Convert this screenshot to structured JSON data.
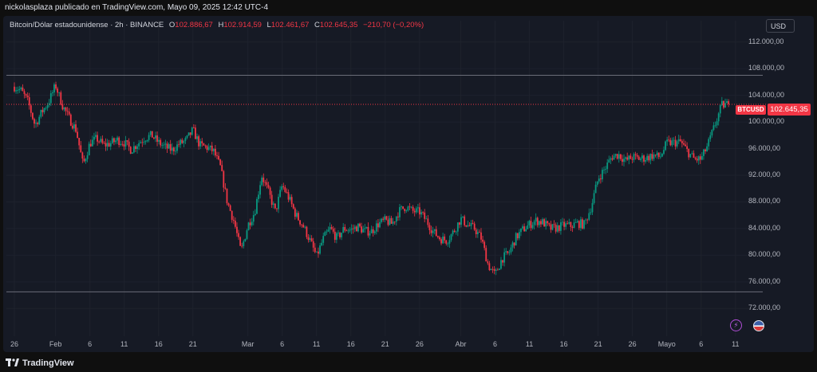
{
  "header": {
    "published_line": "nickolasplaza publicado en TradingView.com, Mayo 09, 2025 12:42 UTC-4"
  },
  "legend": {
    "symbol": "Bitcoin/Dólar estadounidense · 2h · BINANCE",
    "o_key": "O",
    "o_val": "102.886,67",
    "h_key": "H",
    "h_val": "102.914,59",
    "l_key": "L",
    "l_val": "102.461,67",
    "c_key": "C",
    "c_val": "102.645,35",
    "change": "−210,70 (−0,20%)"
  },
  "currency_button": "USD",
  "price_tag": {
    "symbol": "BTCUSD",
    "price": "102.645,35"
  },
  "footer": {
    "brand": "TradingView"
  },
  "colors": {
    "up": "#089981",
    "down": "#f23645",
    "background": "#161a25",
    "grid": "#1e222d"
  },
  "chart_data": {
    "type": "candlestick",
    "title": "Bitcoin/Dólar estadounidense · 2h · BINANCE",
    "ylim": [
      70000,
      114000
    ],
    "y_ticks": [
      112000,
      108000,
      104000,
      100000,
      96000,
      92000,
      88000,
      84000,
      80000,
      76000,
      72000
    ],
    "y_tick_labels": [
      "112.000,00",
      "108.000,00",
      "104.000,00",
      "100.000,00",
      "96.000,00",
      "92.000,00",
      "88.000,00",
      "84.000,00",
      "80.000,00",
      "76.000,00",
      "72.000,00"
    ],
    "x_range_days": [
      0,
      107
    ],
    "x_ticks": [
      {
        "day": 0,
        "label": "26"
      },
      {
        "day": 6,
        "label": "Feb"
      },
      {
        "day": 11,
        "label": "6"
      },
      {
        "day": 16,
        "label": "11"
      },
      {
        "day": 21,
        "label": "16"
      },
      {
        "day": 26,
        "label": "21"
      },
      {
        "day": 34,
        "label": "Mar"
      },
      {
        "day": 39,
        "label": "6"
      },
      {
        "day": 44,
        "label": "11"
      },
      {
        "day": 49,
        "label": "16"
      },
      {
        "day": 54,
        "label": "21"
      },
      {
        "day": 59,
        "label": "26"
      },
      {
        "day": 65,
        "label": "Abr"
      },
      {
        "day": 70,
        "label": "6"
      },
      {
        "day": 75,
        "label": "11"
      },
      {
        "day": 80,
        "label": "16"
      },
      {
        "day": 85,
        "label": "21"
      },
      {
        "day": 90,
        "label": "26"
      },
      {
        "day": 95,
        "label": "Mayo"
      },
      {
        "day": 100,
        "label": "6"
      },
      {
        "day": 105,
        "label": "11"
      }
    ],
    "horizontal_lines": [
      107000,
      74500
    ],
    "last_price": 102645.35,
    "close_path": [
      [
        0,
        105300
      ],
      [
        1,
        104700
      ],
      [
        2,
        103000
      ],
      [
        3,
        99500
      ],
      [
        4,
        101500
      ],
      [
        5,
        103000
      ],
      [
        6,
        105500
      ],
      [
        7,
        102500
      ],
      [
        8,
        100500
      ],
      [
        9,
        98800
      ],
      [
        10,
        93500
      ],
      [
        11,
        96800
      ],
      [
        12,
        97500
      ],
      [
        13,
        96500
      ],
      [
        14,
        96800
      ],
      [
        15,
        97300
      ],
      [
        16,
        96900
      ],
      [
        17,
        95800
      ],
      [
        18,
        96800
      ],
      [
        19,
        97600
      ],
      [
        20,
        98000
      ],
      [
        21,
        96900
      ],
      [
        22,
        96200
      ],
      [
        23,
        95800
      ],
      [
        24,
        96700
      ],
      [
        25,
        97200
      ],
      [
        26,
        98800
      ],
      [
        27,
        96500
      ],
      [
        28,
        96200
      ],
      [
        29,
        95600
      ],
      [
        30,
        93200
      ],
      [
        31,
        88000
      ],
      [
        32,
        85000
      ],
      [
        33,
        80500
      ],
      [
        34,
        84500
      ],
      [
        35,
        86500
      ],
      [
        36,
        92000
      ],
      [
        37,
        89500
      ],
      [
        38,
        86500
      ],
      [
        39,
        90500
      ],
      [
        40,
        88500
      ],
      [
        41,
        86000
      ],
      [
        42,
        84500
      ],
      [
        43,
        82300
      ],
      [
        44,
        79800
      ],
      [
        45,
        82500
      ],
      [
        46,
        84000
      ],
      [
        47,
        82500
      ],
      [
        48,
        84000
      ],
      [
        49,
        83800
      ],
      [
        50,
        84300
      ],
      [
        51,
        83600
      ],
      [
        52,
        83600
      ],
      [
        53,
        84700
      ],
      [
        54,
        85200
      ],
      [
        55,
        84700
      ],
      [
        56,
        86600
      ],
      [
        57,
        87300
      ],
      [
        58,
        86600
      ],
      [
        59,
        86500
      ],
      [
        60,
        85200
      ],
      [
        61,
        83500
      ],
      [
        62,
        82500
      ],
      [
        63,
        82200
      ],
      [
        64,
        83600
      ],
      [
        65,
        85500
      ],
      [
        66,
        84500
      ],
      [
        67,
        84000
      ],
      [
        68,
        82500
      ],
      [
        69,
        78500
      ],
      [
        70,
        77000
      ],
      [
        71,
        79500
      ],
      [
        72,
        80300
      ],
      [
        73,
        82600
      ],
      [
        74,
        83800
      ],
      [
        75,
        84600
      ],
      [
        76,
        85200
      ],
      [
        77,
        84900
      ],
      [
        78,
        84000
      ],
      [
        79,
        84100
      ],
      [
        80,
        84500
      ],
      [
        81,
        84400
      ],
      [
        82,
        84800
      ],
      [
        83,
        84600
      ],
      [
        84,
        87300
      ],
      [
        85,
        91500
      ],
      [
        86,
        93000
      ],
      [
        87,
        94800
      ],
      [
        88,
        95100
      ],
      [
        89,
        94200
      ],
      [
        90,
        94700
      ],
      [
        91,
        94500
      ],
      [
        92,
        94600
      ],
      [
        93,
        95000
      ],
      [
        94,
        94700
      ],
      [
        95,
        96800
      ],
      [
        96,
        96900
      ],
      [
        97,
        97000
      ],
      [
        98,
        95600
      ],
      [
        99,
        94400
      ],
      [
        100,
        94400
      ],
      [
        101,
        96600
      ],
      [
        102,
        99500
      ],
      [
        103,
        102500
      ],
      [
        104,
        102645
      ]
    ]
  }
}
